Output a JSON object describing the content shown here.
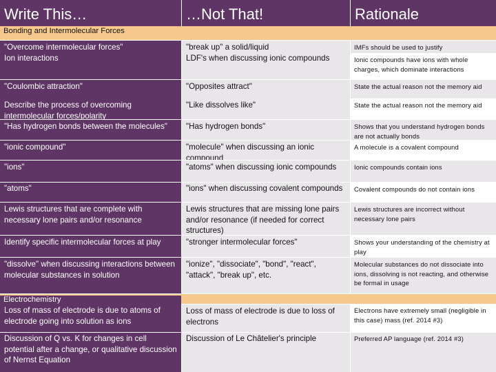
{
  "headers": {
    "col1": "Write This…",
    "col2": "…Not That!",
    "col3": "Rationale"
  },
  "sections": {
    "bonding": "Bonding and Intermolecular Forces",
    "electrochemistry": "Electrochemistry"
  },
  "rows": {
    "r1": {
      "write": [
        "\"Overcome intermolecular forces\"",
        "Ion interactions"
      ],
      "not": [
        "\"break up\" a solid/liquid",
        "LDF's when discussing ionic compounds"
      ],
      "rationale": [
        "IMFs should be used to justify",
        "Ionic compounds have ions with whole charges, which dominate interactions"
      ]
    },
    "r2": {
      "write": "\"Coulombic attraction\"",
      "not": "\"Opposites attract\"",
      "rationale": "State the actual reason not the memory aid"
    },
    "r3": {
      "write": "Describe the process of overcoming intermolecular forces/polarity",
      "not": "\"Like dissolves like\"",
      "rationale": "State the actual reason not the memory aid"
    },
    "r4": {
      "write": "\"Has hydrogen bonds between the molecules\"",
      "not": "\"Has hydrogen bonds\"",
      "rationale": "Shows that you understand hydrogen bonds are not actually bonds"
    },
    "r5": {
      "write": "\"ionic compound\"",
      "not": "\"molecule\" when discussing an ionic compound",
      "rationale": "A molecule is a covalent compound"
    },
    "r6": {
      "write": "\"ions\"",
      "not": "\"atoms\" when discussing ionic compounds",
      "rationale": "Ionic compounds contain ions"
    },
    "r7": {
      "write": "\"atoms\"",
      "not": "\"ions\" when discussing covalent compounds",
      "rationale": "Covalent compounds do not contain ions"
    },
    "r8": {
      "write": "Lewis structures that are complete with necessary lone pairs and/or resonance",
      "not": "Lewis structures that are missing lone pairs and/or resonance (if needed for correct structures)",
      "rationale": "Lewis structures are incorrect without necessary lone pairs"
    },
    "r9": {
      "write": "Identify specific intermolecular forces at play",
      "not": "\"stronger intermolecular forces\"",
      "rationale": "Shows your understanding of the chemistry at play"
    },
    "r10": {
      "write": "\"dissolve\" when discussing interactions between molecular substances in solution",
      "not": "\"ionize\", \"dissociate\", \"bond\", \"react\", \"attack\", \"break up\", etc.",
      "rationale": "Molecular substances do not dissociate into ions, dissolving is not reacting, and otherwise be formal in usage"
    },
    "e1": {
      "write": "Loss of mass of electrode is due to atoms of electrode going into solution as ions",
      "not": "Loss of mass of electrode is due to loss of electrons",
      "rationale": "Electrons have extremely small (negligible in this case) mass (ref. 2014 #3)"
    },
    "e2": {
      "write": "Discussion of Q vs. K for changes in cell potential after a change, or qualitative discussion of Nernst Equation",
      "not": "Discussion of Le Châtelier's principle",
      "rationale": "Preferred AP language (ref. 2014 #3)"
    }
  }
}
